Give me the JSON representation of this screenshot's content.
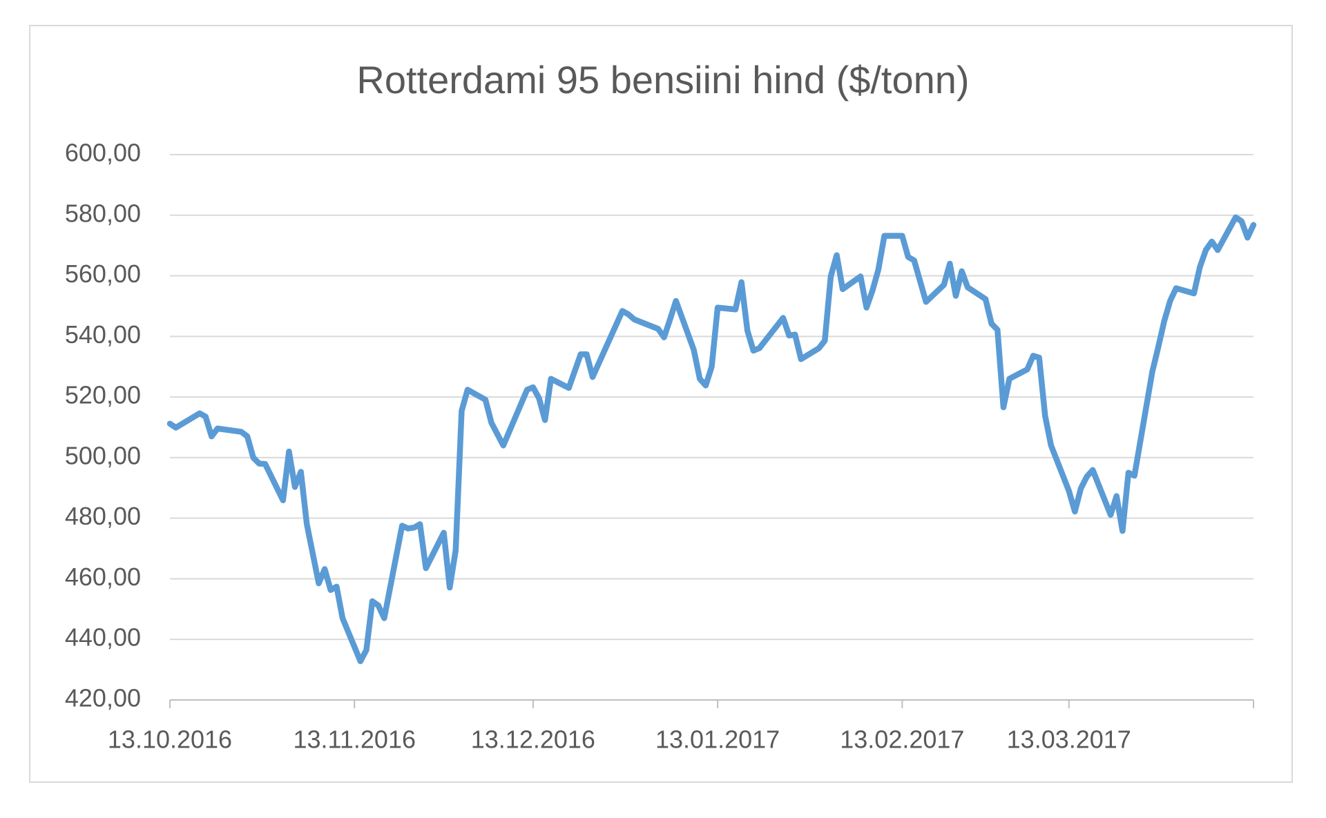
{
  "chart_data": {
    "type": "line",
    "title": "Rotterdami 95 bensiini hind ($/tonn)",
    "x": [
      "2016-10-13",
      "2016-10-14",
      "2016-10-18",
      "2016-10-19",
      "2016-10-20",
      "2016-10-21",
      "2016-10-25",
      "2016-10-26",
      "2016-10-27",
      "2016-10-28",
      "2016-10-29",
      "2016-11-01",
      "2016-11-02",
      "2016-11-03",
      "2016-11-04",
      "2016-11-05",
      "2016-11-07",
      "2016-11-08",
      "2016-11-09",
      "2016-11-10",
      "2016-11-11",
      "2016-11-14",
      "2016-11-15",
      "2016-11-16",
      "2016-11-17",
      "2016-11-18",
      "2016-11-21",
      "2016-11-22",
      "2016-11-23",
      "2016-11-24",
      "2016-11-25",
      "2016-11-28",
      "2016-11-29",
      "2016-11-30",
      "2016-12-01",
      "2016-12-02",
      "2016-12-05",
      "2016-12-06",
      "2016-12-08",
      "2016-12-12",
      "2016-12-13",
      "2016-12-14",
      "2016-12-15",
      "2016-12-16",
      "2016-12-19",
      "2016-12-21",
      "2016-12-22",
      "2016-12-23",
      "2016-12-28",
      "2016-12-29",
      "2016-12-30",
      "2017-01-03",
      "2017-01-04",
      "2017-01-05",
      "2017-01-06",
      "2017-01-09",
      "2017-01-10",
      "2017-01-11",
      "2017-01-12",
      "2017-01-13",
      "2017-01-16",
      "2017-01-17",
      "2017-01-18",
      "2017-01-19",
      "2017-01-20",
      "2017-01-24",
      "2017-01-25",
      "2017-01-26",
      "2017-01-27",
      "2017-01-30",
      "2017-01-31",
      "2017-02-01",
      "2017-02-02",
      "2017-02-03",
      "2017-02-06",
      "2017-02-07",
      "2017-02-08",
      "2017-02-09",
      "2017-02-10",
      "2017-02-13",
      "2017-02-14",
      "2017-02-15",
      "2017-02-17",
      "2017-02-20",
      "2017-02-21",
      "2017-02-22",
      "2017-02-23",
      "2017-02-24",
      "2017-02-27",
      "2017-02-28",
      "2017-03-01",
      "2017-03-02",
      "2017-03-03",
      "2017-03-06",
      "2017-03-07",
      "2017-03-08",
      "2017-03-09",
      "2017-03-10",
      "2017-03-13",
      "2017-03-14",
      "2017-03-15",
      "2017-03-16",
      "2017-03-17",
      "2017-03-20",
      "2017-03-21",
      "2017-03-22",
      "2017-03-23",
      "2017-03-24",
      "2017-03-27",
      "2017-03-28",
      "2017-03-29",
      "2017-03-30",
      "2017-03-31",
      "2017-04-03",
      "2017-04-04",
      "2017-04-05",
      "2017-04-06",
      "2017-04-07",
      "2017-04-10",
      "2017-04-11",
      "2017-04-12",
      "2017-04-13"
    ],
    "series": [
      {
        "color": "#5b9bd5",
        "values": [
          511.2,
          509.9,
          514.6,
          513.5,
          507,
          509.6,
          508.5,
          507,
          500,
          498,
          497.9,
          485.9,
          502,
          490.3,
          495.3,
          478,
          458.5,
          463.2,
          456.3,
          457.4,
          447,
          432.8,
          436.5,
          452.6,
          451.2,
          447,
          477.5,
          476.6,
          476.9,
          478,
          463.5,
          475.2,
          457.1,
          469.4,
          515.4,
          522.4,
          519.1,
          511.5,
          504,
          522.4,
          523.2,
          519.6,
          512.4,
          526,
          523,
          534.1,
          534.1,
          526.6,
          548.4,
          547.3,
          545.6,
          542.5,
          539.7,
          545.6,
          551.7,
          535.5,
          526,
          523.8,
          530,
          549.5,
          548.9,
          557.9,
          541.9,
          535.3,
          536.1,
          546.1,
          540.3,
          540.6,
          532.5,
          536.1,
          538.6,
          559.8,
          566.8,
          555.6,
          559.8,
          549.5,
          555.1,
          562.1,
          573.2,
          573.2,
          566.2,
          565.1,
          551.4,
          557,
          564,
          553.4,
          561.5,
          556.2,
          552.3,
          544.2,
          542.2,
          516.6,
          526,
          529.1,
          533.6,
          533,
          513.8,
          504,
          489,
          482.2,
          489.8,
          493.7,
          495.9,
          481.1,
          487.3,
          475.8,
          495,
          494,
          528.3,
          536.4,
          545,
          551.7,
          555.9,
          554.2,
          562.9,
          568.5,
          571.3,
          568.5,
          579.3,
          578,
          572.6,
          576.8
        ]
      }
    ],
    "xlim": [
      "2016-10-13",
      "2017-04-13"
    ],
    "xticks": [
      {
        "value": "2016-10-13",
        "label": "13.10.2016"
      },
      {
        "value": "2016-11-13",
        "label": "13.11.2016"
      },
      {
        "value": "2016-12-13",
        "label": "13.12.2016"
      },
      {
        "value": "2017-01-13",
        "label": "13.01.2017"
      },
      {
        "value": "2017-02-13",
        "label": "13.02.2017"
      },
      {
        "value": "2017-03-13",
        "label": "13.03.2017"
      }
    ],
    "ylim": [
      420,
      600
    ],
    "yticks": [
      {
        "value": 420,
        "label": "420,00"
      },
      {
        "value": 440,
        "label": "440,00"
      },
      {
        "value": 460,
        "label": "460,00"
      },
      {
        "value": 480,
        "label": "480,00"
      },
      {
        "value": 500,
        "label": "500,00"
      },
      {
        "value": 520,
        "label": "520,00"
      },
      {
        "value": 540,
        "label": "540,00"
      },
      {
        "value": 560,
        "label": "560,00"
      },
      {
        "value": 580,
        "label": "580,00"
      },
      {
        "value": 600,
        "label": "600,00"
      }
    ],
    "grid": true
  }
}
